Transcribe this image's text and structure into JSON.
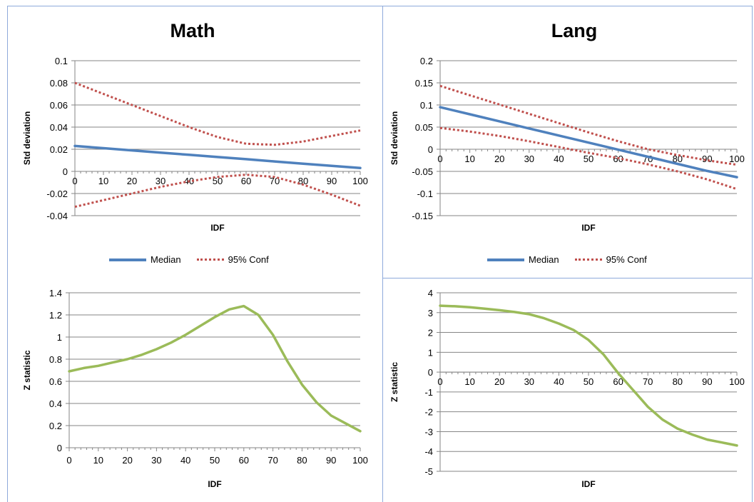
{
  "colors": {
    "median": "#4f81bd",
    "conf": "#c0504d",
    "zstat": "#9bbb59",
    "grid": "#868686",
    "panel_border": "#8eaadb"
  },
  "titles": {
    "math": "Math",
    "lang": "Lang"
  },
  "legend": {
    "median_label": "Median",
    "conf_label": "95% Conf"
  },
  "chart_data": [
    {
      "id": "math-std",
      "type": "line",
      "title": "Math",
      "xlabel": "IDF",
      "ylabel": "Std deviation",
      "xlim": [
        0,
        100
      ],
      "ylim": [
        -0.04,
        0.1
      ],
      "ytick_step": 0.02,
      "yticks": [
        "0.1",
        "0.08",
        "0.06",
        "0.04",
        "0.02",
        "0",
        "-0.02",
        "-0.04"
      ],
      "xticks": [
        "0",
        "10",
        "20",
        "30",
        "40",
        "50",
        "60",
        "70",
        "80",
        "90",
        "100"
      ],
      "grid": true,
      "legend": "bottom",
      "series": [
        {
          "name": "Median",
          "style": "solid",
          "color": "#4f81bd",
          "x": [
            0,
            10,
            20,
            30,
            40,
            50,
            60,
            70,
            80,
            90,
            100
          ],
          "y": [
            0.023,
            0.021,
            0.019,
            0.017,
            0.015,
            0.013,
            0.011,
            0.009,
            0.007,
            0.005,
            0.003
          ]
        },
        {
          "name": "95% Conf",
          "style": "dotted",
          "color": "#c0504d",
          "x": [
            0,
            10,
            20,
            30,
            40,
            50,
            60,
            70,
            80,
            90,
            100
          ],
          "y": [
            0.08,
            0.07,
            0.06,
            0.05,
            0.04,
            0.031,
            0.025,
            0.024,
            0.027,
            0.032,
            0.037
          ]
        },
        {
          "name": "95% Conf",
          "style": "dotted",
          "color": "#c0504d",
          "x": [
            0,
            10,
            20,
            30,
            40,
            50,
            60,
            70,
            80,
            90,
            100
          ],
          "y": [
            -0.032,
            -0.026,
            -0.02,
            -0.014,
            -0.009,
            -0.005,
            -0.003,
            -0.005,
            -0.012,
            -0.021,
            -0.031
          ]
        }
      ]
    },
    {
      "id": "lang-std",
      "type": "line",
      "title": "Lang",
      "xlabel": "IDF",
      "ylabel": "Std deviation",
      "xlim": [
        0,
        100
      ],
      "ylim": [
        -0.15,
        0.2
      ],
      "ytick_step": 0.05,
      "yticks": [
        "0.2",
        "0.15",
        "0.1",
        "0.05",
        "0",
        "-0.05",
        "-0.1",
        "-0.15"
      ],
      "xticks": [
        "0",
        "10",
        "20",
        "30",
        "40",
        "50",
        "60",
        "70",
        "80",
        "90",
        "100"
      ],
      "grid": true,
      "legend": "bottom",
      "series": [
        {
          "name": "Median",
          "style": "solid",
          "color": "#4f81bd",
          "x": [
            0,
            10,
            20,
            30,
            40,
            50,
            60,
            70,
            80,
            90,
            100
          ],
          "y": [
            0.095,
            0.079,
            0.063,
            0.047,
            0.031,
            0.015,
            -0.001,
            -0.017,
            -0.033,
            -0.049,
            -0.063
          ]
        },
        {
          "name": "95% Conf",
          "style": "dotted",
          "color": "#c0504d",
          "x": [
            0,
            10,
            20,
            30,
            40,
            50,
            60,
            70,
            80,
            90,
            100
          ],
          "y": [
            0.143,
            0.122,
            0.101,
            0.08,
            0.059,
            0.038,
            0.018,
            0.0,
            -0.013,
            -0.025,
            -0.035
          ]
        },
        {
          "name": "95% Conf",
          "style": "dotted",
          "color": "#c0504d",
          "x": [
            0,
            10,
            20,
            30,
            40,
            50,
            60,
            70,
            80,
            90,
            100
          ],
          "y": [
            0.048,
            0.04,
            0.03,
            0.018,
            0.005,
            -0.008,
            -0.02,
            -0.034,
            -0.05,
            -0.068,
            -0.09
          ]
        }
      ]
    },
    {
      "id": "math-z",
      "type": "line",
      "title": "",
      "xlabel": "IDF",
      "ylabel": "Z statistic",
      "xlim": [
        0,
        100
      ],
      "ylim": [
        0,
        1.4
      ],
      "ytick_step": 0.2,
      "yticks": [
        "1.4",
        "1.2",
        "1",
        "0.8",
        "0.6",
        "0.4",
        "0.2",
        "0"
      ],
      "xticks": [
        "0",
        "10",
        "20",
        "30",
        "40",
        "50",
        "60",
        "70",
        "80",
        "90",
        "100"
      ],
      "grid": true,
      "series": [
        {
          "name": "",
          "style": "solid",
          "color": "#9bbb59",
          "x": [
            0,
            5,
            10,
            15,
            20,
            25,
            30,
            35,
            40,
            45,
            50,
            55,
            60,
            65,
            70,
            75,
            80,
            85,
            90,
            95,
            100
          ],
          "y": [
            0.69,
            0.72,
            0.74,
            0.77,
            0.8,
            0.84,
            0.89,
            0.95,
            1.02,
            1.1,
            1.18,
            1.25,
            1.28,
            1.2,
            1.02,
            0.78,
            0.57,
            0.41,
            0.29,
            0.22,
            0.15
          ]
        }
      ]
    },
    {
      "id": "lang-z",
      "type": "line",
      "title": "",
      "xlabel": "IDF",
      "ylabel": "Z statistic",
      "xlim": [
        0,
        100
      ],
      "ylim": [
        -5,
        4
      ],
      "ytick_step": 1,
      "yticks": [
        "4",
        "3",
        "2",
        "1",
        "0",
        "-1",
        "-2",
        "-3",
        "-4",
        "-5"
      ],
      "xticks": [
        "0",
        "10",
        "20",
        "30",
        "40",
        "50",
        "60",
        "70",
        "80",
        "90",
        "100"
      ],
      "grid": true,
      "series": [
        {
          "name": "",
          "style": "solid",
          "color": "#9bbb59",
          "x": [
            0,
            5,
            10,
            15,
            20,
            25,
            30,
            35,
            40,
            45,
            50,
            55,
            60,
            65,
            70,
            75,
            80,
            85,
            90,
            95,
            100
          ],
          "y": [
            3.35,
            3.32,
            3.27,
            3.2,
            3.12,
            3.03,
            2.92,
            2.72,
            2.45,
            2.12,
            1.62,
            0.9,
            -0.05,
            -0.9,
            -1.75,
            -2.4,
            -2.85,
            -3.15,
            -3.4,
            -3.55,
            -3.7
          ]
        }
      ]
    }
  ]
}
